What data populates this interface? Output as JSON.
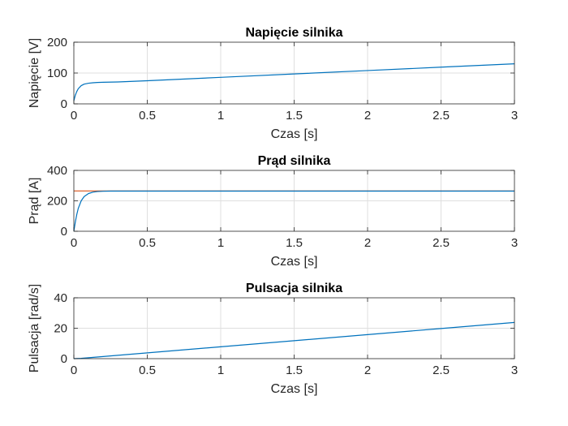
{
  "chart_data": [
    {
      "type": "line",
      "title": "Napięcie silnika",
      "xlabel": "Czas [s]",
      "ylabel": "Napięcie [V]",
      "xlim": [
        0,
        3
      ],
      "ylim": [
        0,
        200
      ],
      "xticks": [
        0,
        0.5,
        1,
        1.5,
        2,
        2.5,
        3
      ],
      "xtick_labels": [
        "0",
        "0.5",
        "1",
        "1.5",
        "2",
        "2.5",
        "3"
      ],
      "yticks": [
        0,
        100,
        200
      ],
      "ytick_labels": [
        "0",
        "100",
        "200"
      ],
      "grid": true,
      "series": [
        {
          "color": "#0072BD",
          "x": [
            0,
            0.01,
            0.02,
            0.03,
            0.05,
            0.07,
            0.1,
            0.13,
            0.16,
            0.2,
            0.3,
            0.5,
            1,
            1.5,
            2,
            2.5,
            3
          ],
          "y": [
            10,
            28,
            40,
            49,
            59,
            64,
            67,
            68.5,
            69.5,
            70,
            71,
            75,
            86,
            97,
            108,
            119,
            130
          ]
        }
      ]
    },
    {
      "type": "line",
      "title": "Prąd silnika",
      "xlabel": "Czas [s]",
      "ylabel": "Prąd [A]",
      "xlim": [
        0,
        3
      ],
      "ylim": [
        0,
        400
      ],
      "xticks": [
        0,
        0.5,
        1,
        1.5,
        2,
        2.5,
        3
      ],
      "xtick_labels": [
        "0",
        "0.5",
        "1",
        "1.5",
        "2",
        "2.5",
        "3"
      ],
      "yticks": [
        0,
        200,
        400
      ],
      "ytick_labels": [
        "0",
        "200",
        "400"
      ],
      "grid": true,
      "series": [
        {
          "color": "#D95319",
          "x": [
            0,
            3
          ],
          "y": [
            265,
            265
          ]
        },
        {
          "color": "#0072BD",
          "x": [
            0,
            0.01,
            0.02,
            0.03,
            0.05,
            0.07,
            0.1,
            0.13,
            0.16,
            0.2,
            0.25,
            3
          ],
          "y": [
            0,
            60,
            110,
            150,
            200,
            228,
            248,
            257,
            261,
            263,
            264,
            264
          ]
        }
      ]
    },
    {
      "type": "line",
      "title": "Pulsacja silnika",
      "xlabel": "Czas [s]",
      "ylabel": "Pulsacja [rad/s]",
      "xlim": [
        0,
        3
      ],
      "ylim": [
        0,
        40
      ],
      "xticks": [
        0,
        0.5,
        1,
        1.5,
        2,
        2.5,
        3
      ],
      "xtick_labels": [
        "0",
        "0.5",
        "1",
        "1.5",
        "2",
        "2.5",
        "3"
      ],
      "yticks": [
        0,
        20,
        40
      ],
      "ytick_labels": [
        "0",
        "20",
        "40"
      ],
      "grid": true,
      "series": [
        {
          "color": "#0072BD",
          "x": [
            0,
            0.05,
            0.1,
            0.2,
            0.5,
            1,
            1.5,
            2,
            2.5,
            3
          ],
          "y": [
            0,
            0.2,
            0.6,
            1.4,
            3.8,
            7.8,
            11.8,
            15.8,
            19.8,
            23.8
          ]
        }
      ]
    }
  ]
}
